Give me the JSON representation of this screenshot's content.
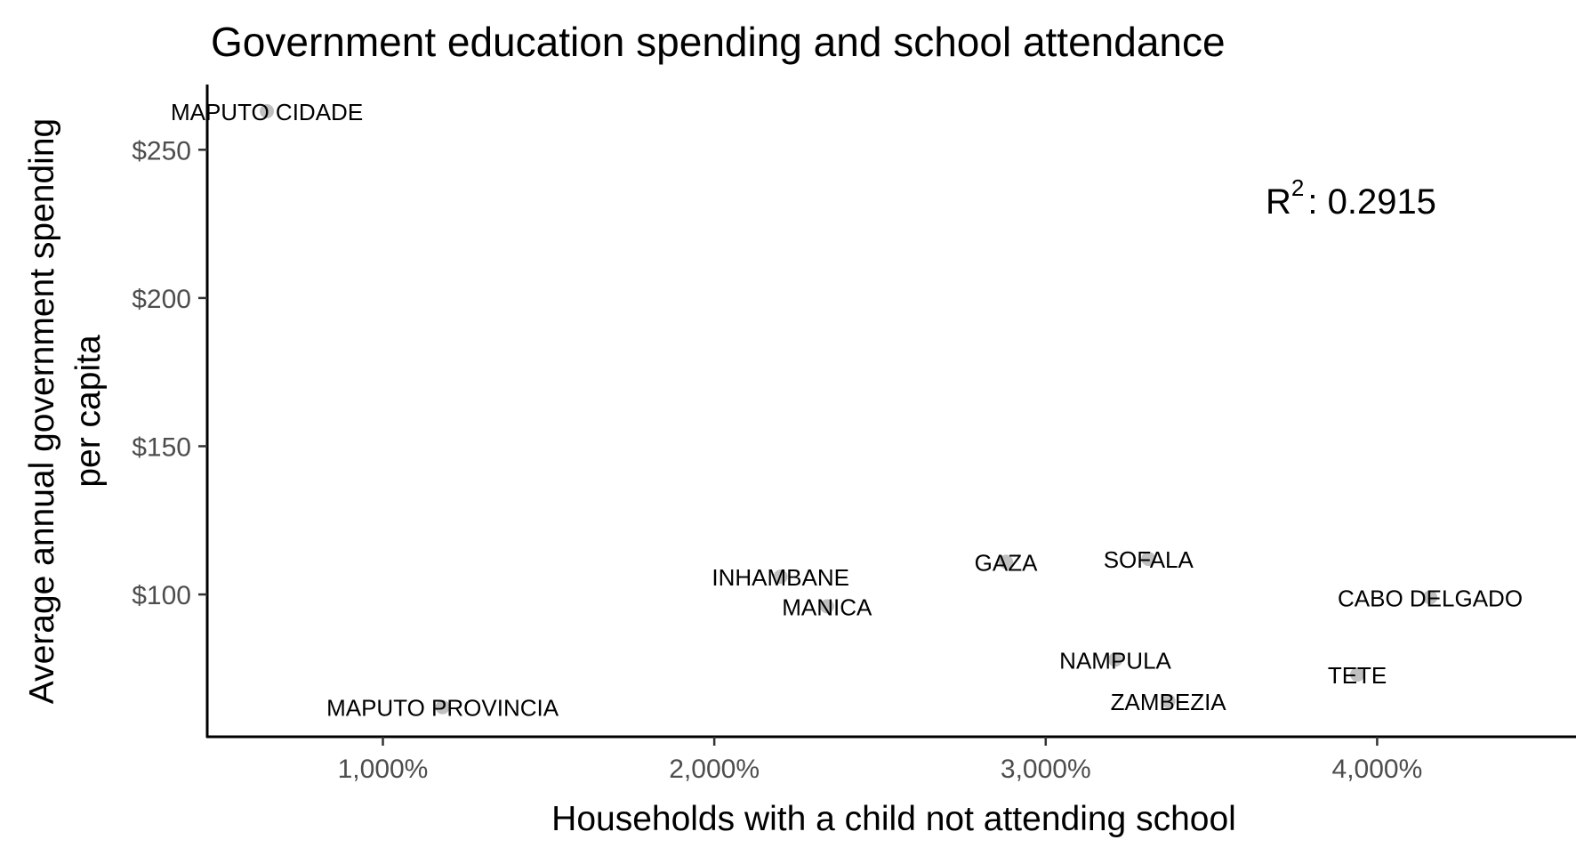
{
  "chart_data": {
    "type": "scatter",
    "title": "Government education spending and school attendance",
    "xlabel": "Households with a child not attending school",
    "ylabel_lines": [
      "Average annual government spending",
      "per capita"
    ],
    "x_ticks": [
      1000,
      2000,
      3000,
      4000
    ],
    "x_tick_labels": [
      "1,000%",
      "2,000%",
      "3,000%",
      "4,000%"
    ],
    "y_ticks": [
      100,
      150,
      200,
      250
    ],
    "y_tick_labels": [
      "$100",
      "$150",
      "$200",
      "$250"
    ],
    "xlim": [
      470,
      4600
    ],
    "ylim": [
      52,
      272
    ],
    "grid": false,
    "annotation": {
      "prefix": "R",
      "superscript": "2",
      "text": ": 0.2915",
      "r_squared": 0.2915
    },
    "point_color": "#c0c0c0",
    "points": [
      {
        "label": "MAPUTO CIDADE",
        "x": 650,
        "y": 263
      },
      {
        "label": "MAPUTO PROVINCIA",
        "x": 1180,
        "y": 62
      },
      {
        "label": "INHAMBANE",
        "x": 2200,
        "y": 106
      },
      {
        "label": "MANICA",
        "x": 2340,
        "y": 96
      },
      {
        "label": "GAZA",
        "x": 2880,
        "y": 111
      },
      {
        "label": "SOFALA",
        "x": 3310,
        "y": 112
      },
      {
        "label": "NAMPULA",
        "x": 3210,
        "y": 78
      },
      {
        "label": "ZAMBEZIA",
        "x": 3370,
        "y": 64
      },
      {
        "label": "TETE",
        "x": 3940,
        "y": 73
      },
      {
        "label": "CABO DELGADO",
        "x": 4160,
        "y": 99
      }
    ]
  }
}
